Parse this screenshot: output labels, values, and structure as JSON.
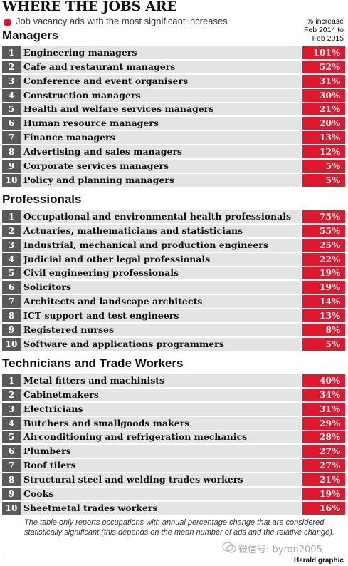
{
  "header": {
    "title": "WHERE THE JOBS ARE",
    "subtitle": "Job vacancy ads with the most significant increases",
    "column_header": [
      "% increase",
      "Feb 2014 to",
      "Feb 2015"
    ]
  },
  "sections": [
    {
      "title": "Managers",
      "rows": [
        [
          "1",
          "Engineering managers",
          "101%"
        ],
        [
          "2",
          "Cafe and restaurant managers",
          "52%"
        ],
        [
          "3",
          "Conference and event organisers",
          "31%"
        ],
        [
          "4",
          "Construction managers",
          "30%"
        ],
        [
          "5",
          "Health and welfare services managers",
          "21%"
        ],
        [
          "6",
          "Human resource managers",
          "20%"
        ],
        [
          "7",
          "Finance managers",
          "13%"
        ],
        [
          "8",
          "Advertising and sales managers",
          "12%"
        ],
        [
          "9",
          "Corporate services managers",
          "5%"
        ],
        [
          "10",
          "Policy and planning managers",
          "5%"
        ]
      ]
    },
    {
      "title": "Professionals",
      "rows": [
        [
          "1",
          "Occupational and environmental health professionals",
          "75%"
        ],
        [
          "2",
          "Actuaries, mathematicians and statisticians",
          "55%"
        ],
        [
          "3",
          "Industrial, mechanical and production engineers",
          "25%"
        ],
        [
          "4",
          "Judicial and other legal professionals",
          "22%"
        ],
        [
          "5",
          "Civil engineering professionals",
          "19%"
        ],
        [
          "6",
          "Solicitors",
          "19%"
        ],
        [
          "7",
          "Architects and landscape architects",
          "14%"
        ],
        [
          "8",
          "ICT support and test engineers",
          "13%"
        ],
        [
          "9",
          "Registered nurses",
          "8%"
        ],
        [
          "10",
          "Software and applications programmers",
          "5%"
        ]
      ]
    },
    {
      "title": "Technicians and Trade Workers",
      "rows": [
        [
          "1",
          "Metal fitters and machinists",
          "40%"
        ],
        [
          "2",
          "Cabinetmakers",
          "34%"
        ],
        [
          "3",
          "Electricians",
          "31%"
        ],
        [
          "4",
          "Butchers and smallgoods makers",
          "29%"
        ],
        [
          "5",
          "Airconditioning and refrigeration mechanics",
          "28%"
        ],
        [
          "6",
          "Plumbers",
          "27%"
        ],
        [
          "7",
          "Roof tilers",
          "27%"
        ],
        [
          "8",
          "Structural steel and welding trades workers",
          "21%"
        ],
        [
          "9",
          "Cooks",
          "19%"
        ],
        [
          "10",
          "Sheetmetal trades workers",
          "16%"
        ]
      ]
    }
  ],
  "footnote": "The table only reports occupations with annual percentage change that are considered statistically significant (this depends on the mean number of ads and the relative change).",
  "watermark": "微信号: byron2005",
  "credit": "Herald graphic"
}
